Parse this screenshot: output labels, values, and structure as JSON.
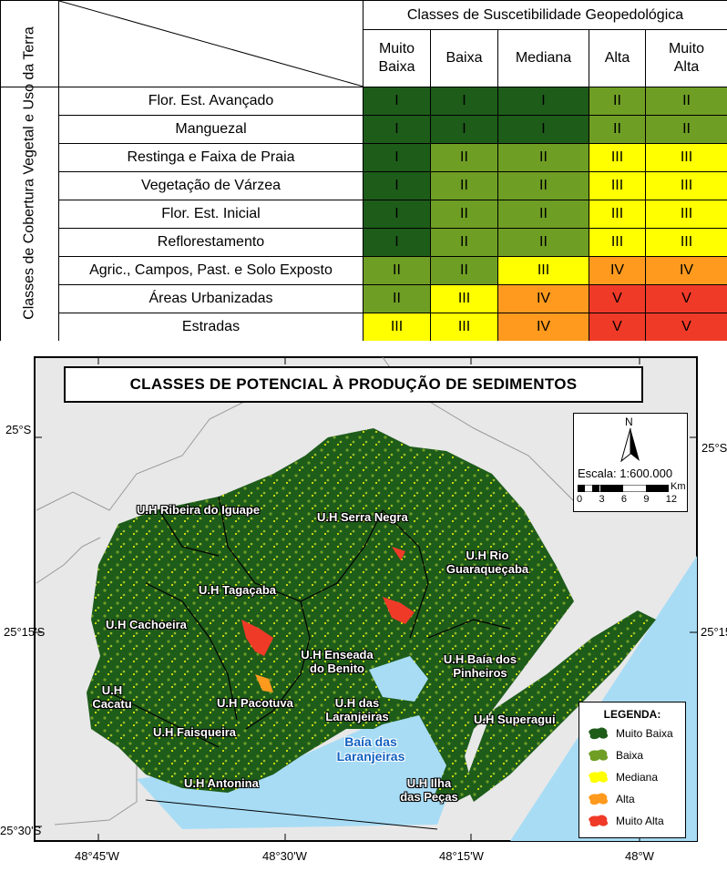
{
  "table": {
    "row_header_title": "Classes de Cobertura Vegetal e Uso da Terra",
    "col_group_title": "Classes de Suscetibilidade Geopedológica",
    "columns": [
      "Muito Baixa",
      "Baixa",
      "Mediana",
      "Alta",
      "Muito Alta"
    ],
    "rows": [
      {
        "label": "Flor. Est. Avançado",
        "cells": [
          "I",
          "I",
          "I",
          "II",
          "II"
        ]
      },
      {
        "label": "Manguezal",
        "cells": [
          "I",
          "I",
          "I",
          "II",
          "II"
        ]
      },
      {
        "label": "Restinga e Faixa de Praia",
        "cells": [
          "I",
          "II",
          "II",
          "III",
          "III"
        ]
      },
      {
        "label": "Vegetação de Várzea",
        "cells": [
          "I",
          "II",
          "II",
          "III",
          "III"
        ]
      },
      {
        "label": "Flor. Est. Inicial",
        "cells": [
          "I",
          "II",
          "II",
          "III",
          "III"
        ]
      },
      {
        "label": "Reflorestamento",
        "cells": [
          "I",
          "II",
          "II",
          "III",
          "III"
        ]
      },
      {
        "label": "Agric., Campos, Past. e Solo Exposto",
        "cells": [
          "II",
          "II",
          "III",
          "IV",
          "IV"
        ]
      },
      {
        "label": "Áreas Urbanizadas",
        "cells": [
          "II",
          "III",
          "IV",
          "V",
          "V"
        ]
      },
      {
        "label": "Estradas",
        "cells": [
          "III",
          "III",
          "IV",
          "V",
          "V"
        ]
      }
    ],
    "class_colors": {
      "I": "#1e5c1a",
      "II": "#6f9e24",
      "III": "#ffff00",
      "IV": "#ff9a1e",
      "V": "#f03a28"
    }
  },
  "map": {
    "title": "CLASSES DE POTENCIAL À PRODUÇÃO DE SEDIMENTOS",
    "units": [
      {
        "name": "U.H Ribeira do Iguape"
      },
      {
        "name": "U.H Serra Negra"
      },
      {
        "name": "U.H Rio Guaraqueçaba"
      },
      {
        "name": "U.H Tagaçaba"
      },
      {
        "name": "U.H Cachoeira"
      },
      {
        "name": "U.H Enseada do Benito"
      },
      {
        "name": "U.H Baía dos Pinheiros"
      },
      {
        "name": "U.H Cacatu"
      },
      {
        "name": "U.H Pacotuva"
      },
      {
        "name": "U.H das Laranjeiras"
      },
      {
        "name": "U.H Superagui"
      },
      {
        "name": "U.H Faisqueira"
      },
      {
        "name": "U.H Antonina"
      },
      {
        "name": "U.H Ilha das Peças"
      }
    ],
    "bay_label": "Baía das Laranjeiras",
    "lat_labels": [
      "25°S",
      "25°15'S",
      "25°30'S"
    ],
    "lon_labels": [
      "48°45'W",
      "48°30'W",
      "48°15'W",
      "48°W"
    ],
    "north": "N",
    "scale_text": "Escala: 1:600.000",
    "scale_ticks": [
      "0",
      "3",
      "6",
      "9",
      "12"
    ],
    "scale_unit": "Km",
    "legend_title": "LEGENDA:",
    "legend": [
      {
        "label": "Muito Baixa",
        "color": "#1e5c1a"
      },
      {
        "label": "Baixa",
        "color": "#6f9e24"
      },
      {
        "label": "Mediana",
        "color": "#ffff00"
      },
      {
        "label": "Alta",
        "color": "#ff9a1e"
      },
      {
        "label": "Muito Alta",
        "color": "#f03a28"
      }
    ]
  }
}
